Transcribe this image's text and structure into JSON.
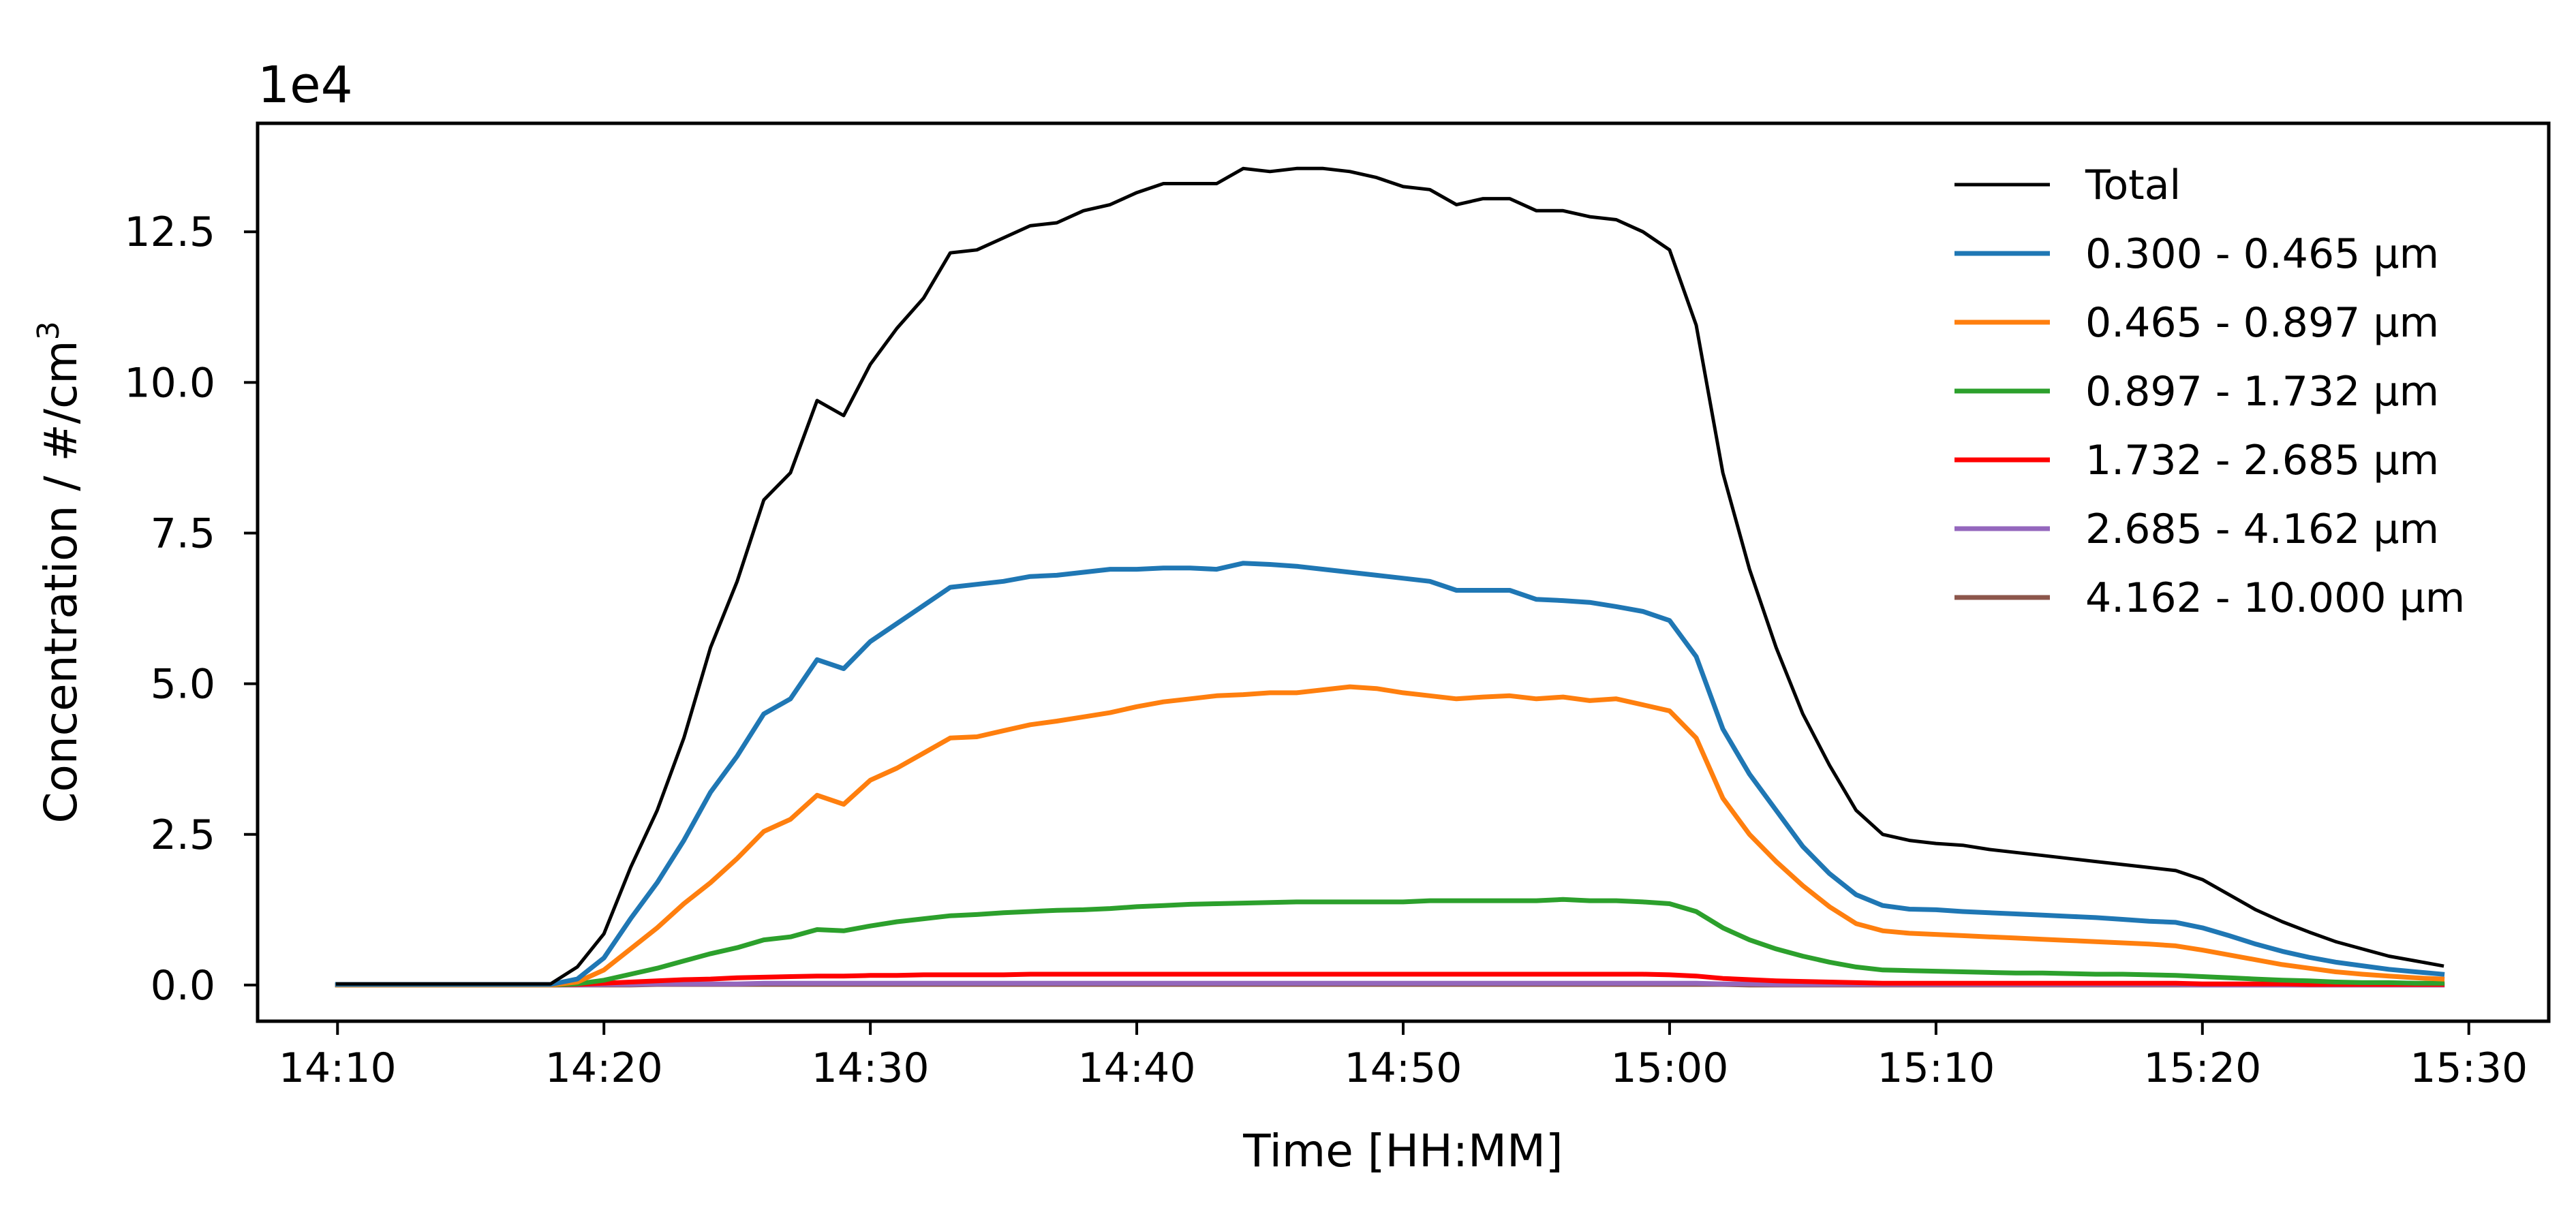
{
  "chart_data": {
    "type": "line",
    "xlabel": "Time [HH:MM]",
    "ylabel": "Concentration / #/cm",
    "ylabel_superscript": "3",
    "y_offset_label": "1e4",
    "y_multiplier": 10000,
    "xlim": [
      "14:07",
      "15:33"
    ],
    "ylim": [
      -0.6,
      14.3
    ],
    "x_ticks": [
      "14:10",
      "14:20",
      "14:30",
      "14:40",
      "14:50",
      "15:00",
      "15:10",
      "15:20",
      "15:30"
    ],
    "y_ticks": [
      0.0,
      2.5,
      5.0,
      7.5,
      10.0,
      12.5
    ],
    "y_tick_labels": [
      "0.0",
      "2.5",
      "5.0",
      "7.5",
      "10.0",
      "12.5"
    ],
    "grid": false,
    "legend_position": "top-right",
    "x": [
      "14:10",
      "14:11",
      "14:12",
      "14:13",
      "14:14",
      "14:15",
      "14:16",
      "14:17",
      "14:18",
      "14:19",
      "14:20",
      "14:21",
      "14:22",
      "14:23",
      "14:24",
      "14:25",
      "14:26",
      "14:27",
      "14:28",
      "14:29",
      "14:30",
      "14:31",
      "14:32",
      "14:33",
      "14:34",
      "14:35",
      "14:36",
      "14:37",
      "14:38",
      "14:39",
      "14:40",
      "14:41",
      "14:42",
      "14:43",
      "14:44",
      "14:45",
      "14:46",
      "14:47",
      "14:48",
      "14:49",
      "14:50",
      "14:51",
      "14:52",
      "14:53",
      "14:54",
      "14:55",
      "14:56",
      "14:57",
      "14:58",
      "14:59",
      "15:00",
      "15:01",
      "15:02",
      "15:03",
      "15:04",
      "15:05",
      "15:06",
      "15:07",
      "15:08",
      "15:09",
      "15:10",
      "15:11",
      "15:12",
      "15:13",
      "15:14",
      "15:15",
      "15:16",
      "15:17",
      "15:18",
      "15:19",
      "15:20",
      "15:21",
      "15:22",
      "15:23",
      "15:24",
      "15:25",
      "15:26",
      "15:27",
      "15:28",
      "15:29"
    ],
    "series": [
      {
        "name": "Total",
        "color": "#000000",
        "values": [
          0.02,
          0.02,
          0.02,
          0.02,
          0.02,
          0.02,
          0.02,
          0.02,
          0.02,
          0.3,
          0.85,
          1.95,
          2.9,
          4.1,
          5.6,
          6.7,
          8.05,
          8.5,
          9.7,
          9.45,
          10.3,
          10.9,
          11.4,
          12.15,
          12.2,
          12.4,
          12.6,
          12.65,
          12.85,
          12.95,
          13.15,
          13.3,
          13.3,
          13.3,
          13.55,
          13.5,
          13.55,
          13.55,
          13.5,
          13.4,
          13.25,
          13.2,
          12.95,
          13.05,
          13.05,
          12.85,
          12.85,
          12.75,
          12.7,
          12.5,
          12.2,
          10.95,
          8.5,
          6.9,
          5.6,
          4.5,
          3.65,
          2.9,
          2.5,
          2.4,
          2.35,
          2.32,
          2.25,
          2.2,
          2.15,
          2.1,
          2.05,
          2.0,
          1.95,
          1.9,
          1.75,
          1.5,
          1.25,
          1.05,
          0.88,
          0.72,
          0.6,
          0.48,
          0.4,
          0.32
        ]
      },
      {
        "name": "0.300 - 0.465 μm",
        "color": "#1f77b4",
        "values": [
          0.01,
          0.01,
          0.01,
          0.01,
          0.01,
          0.01,
          0.01,
          0.01,
          0.01,
          0.1,
          0.45,
          1.1,
          1.7,
          2.4,
          3.2,
          3.8,
          4.5,
          4.75,
          5.4,
          5.25,
          5.7,
          6.0,
          6.3,
          6.6,
          6.65,
          6.7,
          6.78,
          6.8,
          6.85,
          6.9,
          6.9,
          6.92,
          6.92,
          6.9,
          7.0,
          6.98,
          6.95,
          6.9,
          6.85,
          6.8,
          6.75,
          6.7,
          6.55,
          6.55,
          6.55,
          6.4,
          6.38,
          6.35,
          6.28,
          6.2,
          6.05,
          5.45,
          4.25,
          3.5,
          2.9,
          2.3,
          1.85,
          1.5,
          1.32,
          1.26,
          1.25,
          1.22,
          1.2,
          1.18,
          1.16,
          1.14,
          1.12,
          1.09,
          1.06,
          1.04,
          0.95,
          0.82,
          0.68,
          0.56,
          0.46,
          0.38,
          0.32,
          0.26,
          0.22,
          0.18
        ]
      },
      {
        "name": "0.465 - 0.897 μm",
        "color": "#ff7f0e",
        "values": [
          0.0,
          0.0,
          0.0,
          0.0,
          0.0,
          0.0,
          0.0,
          0.0,
          0.0,
          0.05,
          0.25,
          0.6,
          0.95,
          1.35,
          1.7,
          2.1,
          2.55,
          2.75,
          3.15,
          3.0,
          3.4,
          3.6,
          3.85,
          4.1,
          4.12,
          4.22,
          4.32,
          4.38,
          4.45,
          4.52,
          4.62,
          4.7,
          4.75,
          4.8,
          4.82,
          4.85,
          4.85,
          4.9,
          4.95,
          4.92,
          4.85,
          4.8,
          4.75,
          4.78,
          4.8,
          4.75,
          4.78,
          4.72,
          4.75,
          4.65,
          4.55,
          4.1,
          3.1,
          2.5,
          2.05,
          1.65,
          1.3,
          1.02,
          0.9,
          0.86,
          0.84,
          0.82,
          0.8,
          0.78,
          0.76,
          0.74,
          0.72,
          0.7,
          0.68,
          0.65,
          0.58,
          0.5,
          0.42,
          0.34,
          0.28,
          0.22,
          0.18,
          0.15,
          0.12,
          0.1
        ]
      },
      {
        "name": "0.897 - 1.732 μm",
        "color": "#2ca02c",
        "values": [
          0.0,
          0.0,
          0.0,
          0.0,
          0.0,
          0.0,
          0.0,
          0.0,
          0.0,
          0.02,
          0.08,
          0.18,
          0.28,
          0.4,
          0.52,
          0.62,
          0.75,
          0.8,
          0.92,
          0.9,
          0.98,
          1.05,
          1.1,
          1.15,
          1.17,
          1.2,
          1.22,
          1.24,
          1.25,
          1.27,
          1.3,
          1.32,
          1.34,
          1.35,
          1.36,
          1.37,
          1.38,
          1.38,
          1.38,
          1.38,
          1.38,
          1.4,
          1.4,
          1.4,
          1.4,
          1.4,
          1.42,
          1.4,
          1.4,
          1.38,
          1.35,
          1.22,
          0.95,
          0.75,
          0.6,
          0.48,
          0.38,
          0.3,
          0.25,
          0.24,
          0.23,
          0.22,
          0.21,
          0.2,
          0.2,
          0.19,
          0.18,
          0.18,
          0.17,
          0.16,
          0.14,
          0.12,
          0.1,
          0.08,
          0.07,
          0.05,
          0.04,
          0.04,
          0.03,
          0.03
        ]
      },
      {
        "name": "1.732 - 2.685 μm",
        "color": "#ff0000",
        "values": [
          0.0,
          0.0,
          0.0,
          0.0,
          0.0,
          0.0,
          0.0,
          0.0,
          0.0,
          0.01,
          0.03,
          0.05,
          0.07,
          0.09,
          0.1,
          0.12,
          0.13,
          0.14,
          0.15,
          0.15,
          0.16,
          0.16,
          0.17,
          0.17,
          0.17,
          0.17,
          0.18,
          0.18,
          0.18,
          0.18,
          0.18,
          0.18,
          0.18,
          0.18,
          0.18,
          0.18,
          0.18,
          0.18,
          0.18,
          0.18,
          0.18,
          0.18,
          0.18,
          0.18,
          0.18,
          0.18,
          0.18,
          0.18,
          0.18,
          0.18,
          0.17,
          0.15,
          0.11,
          0.09,
          0.07,
          0.06,
          0.05,
          0.04,
          0.03,
          0.03,
          0.03,
          0.03,
          0.03,
          0.03,
          0.03,
          0.03,
          0.03,
          0.03,
          0.03,
          0.03,
          0.02,
          0.02,
          0.02,
          0.02,
          0.01,
          0.01,
          0.01,
          0.01,
          0.01,
          0.01
        ]
      },
      {
        "name": "2.685 - 4.162 μm",
        "color": "#9467bd",
        "values": [
          0.0,
          0.0,
          0.0,
          0.0,
          0.0,
          0.0,
          0.0,
          0.0,
          0.0,
          0.0,
          0.01,
          0.01,
          0.02,
          0.02,
          0.02,
          0.02,
          0.03,
          0.03,
          0.03,
          0.03,
          0.03,
          0.03,
          0.03,
          0.03,
          0.03,
          0.03,
          0.03,
          0.03,
          0.03,
          0.03,
          0.03,
          0.03,
          0.03,
          0.03,
          0.03,
          0.03,
          0.03,
          0.03,
          0.03,
          0.03,
          0.03,
          0.03,
          0.03,
          0.03,
          0.03,
          0.03,
          0.03,
          0.03,
          0.03,
          0.03,
          0.03,
          0.03,
          0.02,
          0.02,
          0.01,
          0.01,
          0.01,
          0.01,
          0.01,
          0.01,
          0.01,
          0.01,
          0.01,
          0.01,
          0.01,
          0.01,
          0.01,
          0.01,
          0.01,
          0.01,
          0.0,
          0.0,
          0.0,
          0.0,
          0.0,
          0.0,
          0.0,
          0.0,
          0.0,
          0.0
        ]
      },
      {
        "name": "4.162 - 10.000 μm",
        "color": "#8c564b",
        "values": [
          0.0,
          0.0,
          0.0,
          0.0,
          0.0,
          0.0,
          0.0,
          0.0,
          0.0,
          0.0,
          0.0,
          0.0,
          0.01,
          0.01,
          0.01,
          0.01,
          0.01,
          0.01,
          0.01,
          0.01,
          0.01,
          0.01,
          0.01,
          0.01,
          0.01,
          0.01,
          0.01,
          0.01,
          0.01,
          0.01,
          0.01,
          0.01,
          0.01,
          0.01,
          0.01,
          0.01,
          0.01,
          0.01,
          0.01,
          0.01,
          0.01,
          0.01,
          0.01,
          0.01,
          0.01,
          0.01,
          0.01,
          0.01,
          0.01,
          0.01,
          0.01,
          0.01,
          0.01,
          0.0,
          0.0,
          0.0,
          0.0,
          0.0,
          0.0,
          0.0,
          0.0,
          0.0,
          0.0,
          0.0,
          0.0,
          0.0,
          0.0,
          0.0,
          0.0,
          0.0,
          0.0,
          0.0,
          0.0,
          0.0,
          0.0,
          0.0,
          0.0,
          0.0,
          0.0,
          0.0
        ]
      }
    ]
  }
}
